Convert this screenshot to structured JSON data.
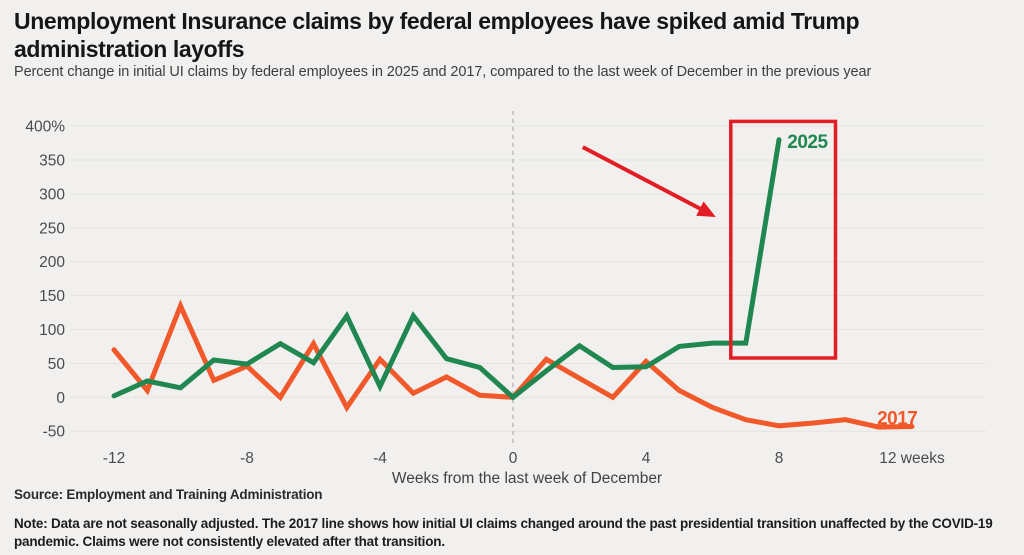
{
  "header": {
    "title": "Unemployment Insurance claims by federal employees have spiked amid Trump administration layoffs",
    "subtitle": "Percent change in initial UI claims by federal employees in 2025 and 2017, compared to the last week of December in the previous year"
  },
  "chart_data": {
    "type": "line",
    "title": "Unemployment Insurance claims by federal employees have spiked amid Trump administration layoffs",
    "xlabel": "Weeks from the last week of December",
    "ylabel": "Percent change in initial UI claims (%)",
    "x_axis": {
      "label": "Weeks from the last week of December",
      "tick_values": [
        -12,
        -8,
        -4,
        0,
        4,
        8,
        12
      ],
      "tick_labels": [
        "-12",
        "-8",
        "-4",
        "0",
        "4",
        "8",
        "12 weeks"
      ],
      "range": [
        -13.3,
        14.2
      ]
    },
    "y_axis": {
      "tick_values": [
        400,
        350,
        300,
        250,
        200,
        150,
        100,
        50,
        0,
        -50
      ],
      "tick_labels": [
        "400%",
        "350",
        "300",
        "250",
        "200",
        "150",
        "100",
        "50",
        "0",
        "-50"
      ],
      "range": [
        -50,
        400
      ]
    },
    "grid": true,
    "zero_week_guide": true,
    "legend_position": "end-of-line labels",
    "series": [
      {
        "name": "2017",
        "color": "#f1592a",
        "label_anchor": {
          "week": 10.95,
          "value": -40
        },
        "points": [
          [
            -12,
            70
          ],
          [
            -11,
            10
          ],
          [
            -10,
            135
          ],
          [
            -9,
            25
          ],
          [
            -8,
            46
          ],
          [
            -7,
            0
          ],
          [
            -6,
            79
          ],
          [
            -5,
            -15
          ],
          [
            -4,
            56
          ],
          [
            -3,
            6
          ],
          [
            -2,
            30
          ],
          [
            -1,
            3
          ],
          [
            0,
            0
          ],
          [
            1,
            56
          ],
          [
            2,
            28
          ],
          [
            3,
            0
          ],
          [
            4,
            53
          ],
          [
            5,
            10
          ],
          [
            6,
            -15
          ],
          [
            7,
            -33
          ],
          [
            8,
            -42
          ],
          [
            9,
            -38
          ],
          [
            10,
            -33
          ],
          [
            11,
            -44
          ],
          [
            12,
            -43
          ]
        ]
      },
      {
        "name": "2025",
        "color": "#218751",
        "label_anchor": {
          "week": 8.25,
          "value": 368
        },
        "points": [
          [
            -12,
            2
          ],
          [
            -11,
            24
          ],
          [
            -10,
            14
          ],
          [
            -9,
            55
          ],
          [
            -8,
            49
          ],
          [
            -7,
            79
          ],
          [
            -6,
            51
          ],
          [
            -5,
            120
          ],
          [
            -4,
            16
          ],
          [
            -3,
            120
          ],
          [
            -2,
            57
          ],
          [
            -1,
            44
          ],
          [
            0,
            0
          ],
          [
            1,
            39
          ],
          [
            2,
            76
          ],
          [
            3,
            44
          ],
          [
            4,
            45
          ],
          [
            5,
            75
          ],
          [
            6,
            80
          ],
          [
            7,
            80
          ],
          [
            8,
            380
          ]
        ]
      }
    ],
    "annotations": {
      "highlight_box": {
        "color": "#e21d23",
        "week_from": 6.55,
        "week_to": 9.7,
        "value_from": 58,
        "value_to": 407
      },
      "arrow": {
        "color": "#e21d23",
        "from": {
          "week": 2.1,
          "value": 369
        },
        "to": {
          "week": 6.1,
          "value": 266
        }
      }
    }
  },
  "footer": {
    "source": "Source: Employment and Training Administration",
    "note": "Note: Data are not seasonally adjusted. The 2017 line shows how initial UI claims changed around the past presidential transition unaffected by the COVID-19 pandemic. Claims were not consistently elevated after that transition."
  },
  "colors": {
    "background": "#f1f0ee",
    "gridline": "#e4e3e0",
    "guide_dash": "#b6b4b1",
    "tick_text": "#4b4b4b",
    "axis_title_text": "#424242",
    "series_2025": "#218751",
    "series_2017": "#f1592a",
    "annotation_red": "#e21d23"
  }
}
